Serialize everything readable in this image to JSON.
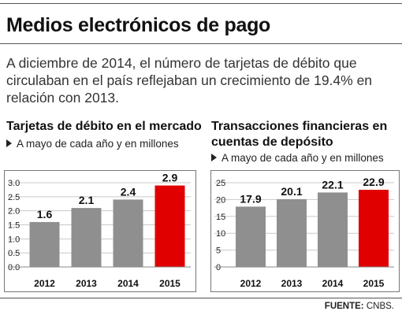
{
  "title": "Medios electrónicos de pago",
  "intro": "A diciembre de 2014, el número de tarjetas de débito que circulaban en el país reflejaban un crecimiento de 19.4% en relación con 2013.",
  "chart_data": [
    {
      "type": "bar",
      "title": "Tarjetas de débito en el mercado",
      "subtitle": "A mayo de cada año y en millones",
      "categories": [
        "2012",
        "2013",
        "2014",
        "2015"
      ],
      "values": [
        1.6,
        2.1,
        2.4,
        2.9
      ],
      "value_labels": [
        "1.6",
        "2.1",
        "2.4",
        "2.9"
      ],
      "ylim": [
        0,
        3.0
      ],
      "yticks": [
        "0.0",
        "0.5",
        "1.0",
        "1.5",
        "2.0",
        "2.5",
        "3.0"
      ],
      "grid": true,
      "colors": {
        "bar": "#8f8f8f",
        "highlight": "#e00000"
      },
      "highlight_index": 3
    },
    {
      "type": "bar",
      "title": "Transacciones financieras en cuentas de depósito",
      "subtitle": "A mayo de cada año y en millones",
      "categories": [
        "2012",
        "2013",
        "2014",
        "2015"
      ],
      "values": [
        17.9,
        20.1,
        22.1,
        22.9
      ],
      "value_labels": [
        "17.9",
        "20.1",
        "22.1",
        "22.9"
      ],
      "ylim": [
        0,
        25
      ],
      "yticks": [
        "0",
        "5",
        "10",
        "15",
        "20",
        "25"
      ],
      "grid": true,
      "colors": {
        "bar": "#8f8f8f",
        "highlight": "#e00000"
      },
      "highlight_index": 3
    }
  ],
  "source": {
    "label": "FUENTE:",
    "value": "CNBS."
  }
}
